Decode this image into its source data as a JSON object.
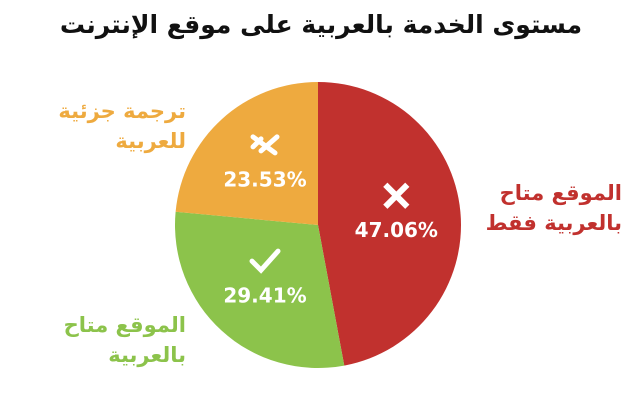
{
  "chart_data": {
    "type": "pie",
    "title": "مستوى الخدمة بالعربية على موقع الإنترنت",
    "categories": [
      "الموقع متاح بالعربية فقط",
      "الموقع متاح بالعربية",
      "ترجمة جزئية للعربية"
    ],
    "values": [
      47.06,
      29.41,
      23.53
    ],
    "value_labels": [
      "47.06%",
      "29.41%",
      "23.53%"
    ],
    "colors": [
      "#c1312e",
      "#8cc34b",
      "#eeaa3f"
    ]
  }
}
